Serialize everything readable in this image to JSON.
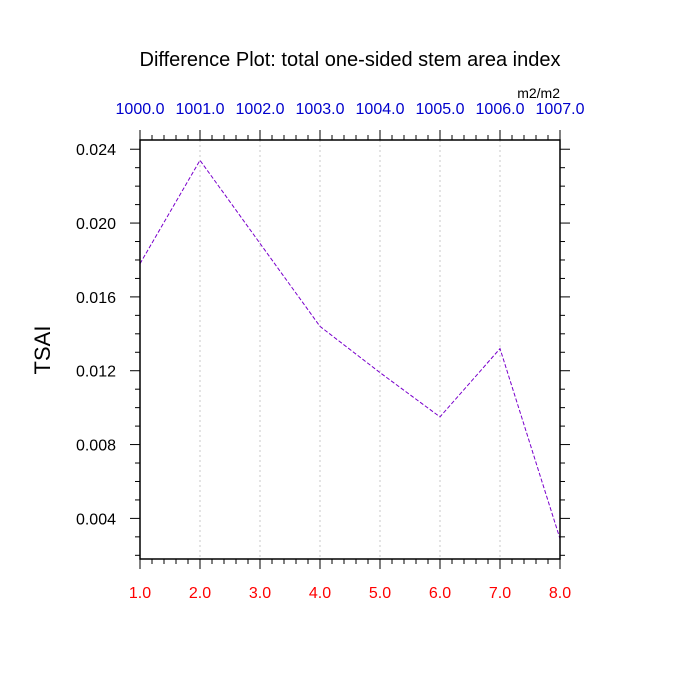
{
  "chart_data": {
    "type": "line",
    "title": "Difference Plot: total one-sided stem area index",
    "units": "m2/m2",
    "ylabel": "TSAI",
    "xlabel": "",
    "x": [
      1,
      2,
      3,
      4,
      5,
      6,
      7,
      8
    ],
    "y": [
      0.0178,
      0.0234,
      0.0189,
      0.0144,
      0.0119,
      0.0095,
      0.0132,
      0.0029
    ],
    "xlim": [
      1.0,
      8.0
    ],
    "ylim": [
      0.0018,
      0.0245
    ],
    "x_ticks": [
      1,
      2,
      3,
      4,
      5,
      6,
      7,
      8
    ],
    "x_tick_labels": [
      "1.0",
      "2.0",
      "3.0",
      "4.0",
      "5.0",
      "6.0",
      "7.0",
      "8.0"
    ],
    "top_tick_labels": [
      "1000.0",
      "1001.0",
      "1002.0",
      "1003.0",
      "1004.0",
      "1005.0",
      "1006.0",
      "1007.0"
    ],
    "y_ticks": [
      0.004,
      0.008,
      0.012,
      0.016,
      0.02,
      0.024
    ],
    "y_tick_labels": [
      "0.004",
      "0.008",
      "0.012",
      "0.016",
      "0.020",
      "0.024"
    ],
    "grid": "vertical dotted",
    "colors": {
      "line": "#7a00cc",
      "bottom_ticks": "#ff0000",
      "top_ticks": "#0000cc",
      "axis": "#000000",
      "grid": "#c8c8c8"
    }
  }
}
